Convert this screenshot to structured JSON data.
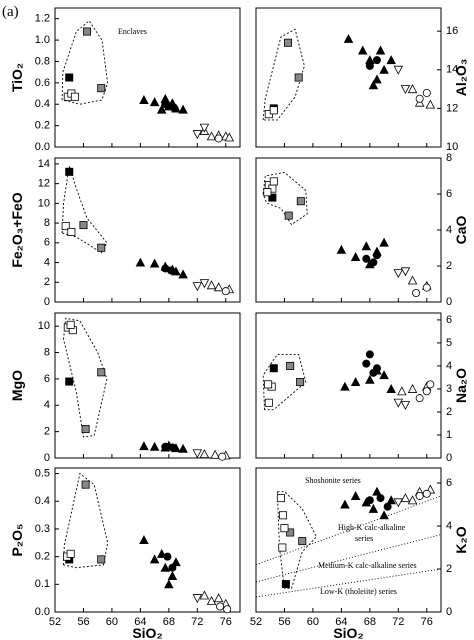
{
  "panel_label": "(a)",
  "chart_data": [
    {
      "type": "scatter",
      "y_label": "TiO₂",
      "y_side": "left",
      "xlim": [
        52,
        78
      ],
      "xticks": [
        52,
        56,
        60,
        64,
        68,
        72,
        76
      ],
      "ylim": [
        0,
        1.3
      ],
      "yticks": [
        {
          "value": 0,
          "label": "0.0"
        },
        0.2,
        0.4,
        0.6,
        0.8,
        {
          "value": 1,
          "label": "1.0"
        },
        1.2
      ],
      "annotations": [
        "Enclaves"
      ],
      "series": [
        {
          "marker": "square",
          "color": "#000000",
          "x": [
            54
          ],
          "values": [
            0.65
          ]
        },
        {
          "marker": "square",
          "color": "#888888",
          "x": [
            56.5,
            58.5
          ],
          "values": [
            1.08,
            0.55
          ]
        },
        {
          "marker": "square",
          "color": "#ffffff",
          "x": [
            53.8,
            54.3,
            54.8
          ],
          "values": [
            0.47,
            0.5,
            0.47
          ]
        },
        {
          "marker": "triangle",
          "color": "#000000",
          "x": [
            64.5,
            66,
            67.5,
            68,
            69,
            70,
            67,
            68.5
          ],
          "values": [
            0.44,
            0.42,
            0.45,
            0.38,
            0.36,
            0.35,
            0.35,
            0.41
          ]
        },
        {
          "marker": "circle",
          "color": "#000000",
          "x": [
            67.5,
            68.2,
            68.8
          ],
          "values": [
            0.4,
            0.38,
            0.36
          ]
        },
        {
          "marker": "triangle",
          "color": "#ffffff",
          "x": [
            73,
            74,
            75,
            76,
            76.5
          ],
          "values": [
            0.15,
            0.1,
            0.11,
            0.1,
            0.09
          ]
        },
        {
          "marker": "inverted",
          "color": "#ffffff",
          "x": [
            72,
            73
          ],
          "values": [
            0.12,
            0.18
          ]
        },
        {
          "marker": "circle",
          "color": "#ffffff",
          "x": [
            75
          ],
          "values": [
            0.08
          ]
        }
      ]
    },
    {
      "type": "scatter",
      "y_label": "Al₂O₃",
      "y_side": "right",
      "xlim": [
        52,
        78
      ],
      "xticks": [
        52,
        56,
        60,
        64,
        68,
        72,
        76
      ],
      "ylim": [
        10,
        17.2
      ],
      "yticks": [
        10,
        12,
        14,
        16
      ],
      "series": [
        {
          "marker": "square",
          "color": "#000000",
          "x": [
            54.5
          ],
          "values": [
            12
          ]
        },
        {
          "marker": "square",
          "color": "#888888",
          "x": [
            56.5,
            58
          ],
          "values": [
            15.4,
            13.6
          ]
        },
        {
          "marker": "square",
          "color": "#ffffff",
          "x": [
            53.8,
            54.5
          ],
          "values": [
            11.7,
            11.9
          ]
        },
        {
          "marker": "triangle",
          "color": "#000000",
          "x": [
            65,
            67,
            68,
            69,
            70,
            68.5,
            71,
            69.5
          ],
          "values": [
            15.6,
            15,
            14.5,
            13.5,
            14,
            13.2,
            14.5,
            15
          ]
        },
        {
          "marker": "circle",
          "color": "#000000",
          "x": [
            68,
            69
          ],
          "values": [
            14.2,
            14.5
          ]
        },
        {
          "marker": "triangle",
          "color": "#ffffff",
          "x": [
            74,
            75,
            76.5
          ],
          "values": [
            13,
            12.3,
            12.2
          ]
        },
        {
          "marker": "inverted",
          "color": "#ffffff",
          "x": [
            72,
            73
          ],
          "values": [
            14,
            13
          ]
        },
        {
          "marker": "circle",
          "color": "#ffffff",
          "x": [
            75,
            76
          ],
          "values": [
            12.5,
            12.8
          ]
        }
      ]
    },
    {
      "type": "scatter",
      "y_label": "Fe₂O₃+FeO",
      "y_side": "left",
      "xlim": [
        52,
        78
      ],
      "xticks": [
        52,
        56,
        60,
        64,
        68,
        72,
        76
      ],
      "ylim": [
        0,
        14.6
      ],
      "yticks": [
        0,
        2,
        4,
        6,
        8,
        10,
        12,
        14
      ],
      "series": [
        {
          "marker": "square",
          "color": "#000000",
          "x": [
            54
          ],
          "values": [
            13.2
          ]
        },
        {
          "marker": "square",
          "color": "#888888",
          "x": [
            56,
            58.5
          ],
          "values": [
            7.8,
            5.5
          ]
        },
        {
          "marker": "square",
          "color": "#ffffff",
          "x": [
            53.5,
            54.3
          ],
          "values": [
            7.7,
            7.1
          ]
        },
        {
          "marker": "triangle",
          "color": "#000000",
          "x": [
            64,
            66,
            67.5,
            68.5,
            70,
            69
          ],
          "values": [
            4,
            3.9,
            3.6,
            3.3,
            2.8,
            3.1
          ]
        },
        {
          "marker": "circle",
          "color": "#000000",
          "x": [
            67.5,
            68.3
          ],
          "values": [
            3.4,
            3.2
          ]
        },
        {
          "marker": "triangle",
          "color": "#ffffff",
          "x": [
            74,
            75,
            76.5
          ],
          "values": [
            1.7,
            1.5,
            1.3
          ]
        },
        {
          "marker": "inverted",
          "color": "#ffffff",
          "x": [
            72,
            73
          ],
          "values": [
            1.6,
            1.9
          ]
        },
        {
          "marker": "circle",
          "color": "#ffffff",
          "x": [
            76
          ],
          "values": [
            1.1
          ]
        }
      ]
    },
    {
      "type": "scatter",
      "y_label": "CaO",
      "y_side": "right",
      "xlim": [
        52,
        78
      ],
      "xticks": [
        52,
        56,
        60,
        64,
        68,
        72,
        76
      ],
      "ylim": [
        0,
        8
      ],
      "yticks": [
        0,
        2,
        4,
        6,
        8
      ],
      "series": [
        {
          "marker": "square",
          "color": "#000000",
          "x": [
            54.3
          ],
          "values": [
            5.8
          ]
        },
        {
          "marker": "square",
          "color": "#888888",
          "x": [
            56.6,
            58.3
          ],
          "values": [
            4.8,
            5.6
          ]
        },
        {
          "marker": "square",
          "color": "#ffffff",
          "x": [
            53.8,
            54.3,
            53.6,
            54.5
          ],
          "values": [
            6.5,
            6.3,
            6.1,
            6.7
          ]
        },
        {
          "marker": "triangle",
          "color": "#000000",
          "x": [
            64,
            66,
            67.5,
            69,
            70,
            68
          ],
          "values": [
            2.9,
            2.5,
            3.1,
            2.8,
            3.3,
            2.1
          ]
        },
        {
          "marker": "circle",
          "color": "#000000",
          "x": [
            67.5,
            68.5,
            69
          ],
          "values": [
            2.4,
            2.2,
            2.6
          ]
        },
        {
          "marker": "triangle",
          "color": "#ffffff",
          "x": [
            74,
            76
          ],
          "values": [
            1.2,
            0.9
          ]
        },
        {
          "marker": "inverted",
          "color": "#ffffff",
          "x": [
            72,
            73
          ],
          "values": [
            1.6,
            1.7
          ]
        },
        {
          "marker": "circle",
          "color": "#ffffff",
          "x": [
            74.5,
            76
          ],
          "values": [
            0.5,
            0.8
          ]
        }
      ]
    },
    {
      "type": "scatter",
      "y_label": "MgO",
      "y_side": "left",
      "xlim": [
        52,
        78
      ],
      "xticks": [
        52,
        56,
        60,
        64,
        68,
        72,
        76
      ],
      "ylim": [
        0,
        11
      ],
      "yticks": [
        0,
        2,
        4,
        6,
        8,
        10
      ],
      "series": [
        {
          "marker": "square",
          "color": "#000000",
          "x": [
            54
          ],
          "values": [
            5.8
          ]
        },
        {
          "marker": "square",
          "color": "#888888",
          "x": [
            58.5,
            56.3
          ],
          "values": [
            6.5,
            2.2
          ]
        },
        {
          "marker": "square",
          "color": "#ffffff",
          "x": [
            53.8,
            54.5,
            54.2
          ],
          "values": [
            9.9,
            9.7,
            10.1
          ]
        },
        {
          "marker": "triangle",
          "color": "#000000",
          "x": [
            64.5,
            66,
            67.5,
            69,
            70,
            68
          ],
          "values": [
            0.9,
            0.85,
            0.8,
            0.75,
            0.7,
            0.95
          ]
        },
        {
          "marker": "circle",
          "color": "#000000",
          "x": [
            67.5,
            68.5
          ],
          "values": [
            0.85,
            0.8
          ]
        },
        {
          "marker": "triangle",
          "color": "#ffffff",
          "x": [
            73,
            74.5,
            76
          ],
          "values": [
            0.3,
            0.25,
            0.2
          ]
        },
        {
          "marker": "inverted",
          "color": "#ffffff",
          "x": [
            72
          ],
          "values": [
            0.35
          ]
        },
        {
          "marker": "circle",
          "color": "#ffffff",
          "x": [
            75.5
          ],
          "values": [
            0.1
          ]
        }
      ]
    },
    {
      "type": "scatter",
      "y_label": "Na₂O",
      "y_side": "right",
      "xlim": [
        52,
        78
      ],
      "xticks": [
        52,
        56,
        60,
        64,
        68,
        72,
        76
      ],
      "ylim": [
        0,
        6.3
      ],
      "yticks": [
        0,
        1,
        2,
        3,
        4,
        5,
        6
      ],
      "series": [
        {
          "marker": "square",
          "color": "#000000",
          "x": [
            54.5
          ],
          "values": [
            3.9
          ]
        },
        {
          "marker": "square",
          "color": "#888888",
          "x": [
            58.2,
            56.8
          ],
          "values": [
            3.3,
            4
          ]
        },
        {
          "marker": "square",
          "color": "#ffffff",
          "x": [
            53.8,
            54.2,
            53.7
          ],
          "values": [
            2.4,
            3.1,
            3.2
          ]
        },
        {
          "marker": "triangle",
          "color": "#000000",
          "x": [
            64.5,
            66,
            68,
            70,
            69,
            71
          ],
          "values": [
            3.1,
            3.3,
            3.4,
            3.6,
            3.8,
            3
          ]
        },
        {
          "marker": "circle",
          "color": "#000000",
          "x": [
            67.5,
            68.5,
            68,
            69
          ],
          "values": [
            4.1,
            3.7,
            4.5,
            3.9
          ]
        },
        {
          "marker": "triangle",
          "color": "#ffffff",
          "x": [
            72.5,
            74,
            76
          ],
          "values": [
            2.9,
            3,
            3.1
          ]
        },
        {
          "marker": "inverted",
          "color": "#ffffff",
          "x": [
            72,
            73
          ],
          "values": [
            2.4,
            2.3
          ]
        },
        {
          "marker": "circle",
          "color": "#ffffff",
          "x": [
            75,
            76,
            76.5
          ],
          "values": [
            2.6,
            2.9,
            3.2
          ]
        }
      ]
    },
    {
      "type": "scatter",
      "y_label": "P₂O₅",
      "x_label": "SiO₂",
      "y_side": "left",
      "xlim": [
        52,
        78
      ],
      "xticks": [
        52,
        56,
        60,
        64,
        68,
        72,
        76
      ],
      "ylim": [
        0,
        0.52
      ],
      "yticks": [
        {
          "value": 0,
          "label": "0.0"
        },
        0.1,
        0.2,
        0.3,
        0.4,
        0.5
      ],
      "series": [
        {
          "marker": "square",
          "color": "#000000",
          "x": [
            54
          ],
          "values": [
            0.19
          ]
        },
        {
          "marker": "square",
          "color": "#888888",
          "x": [
            56.3,
            58.5
          ],
          "values": [
            0.46,
            0.19
          ]
        },
        {
          "marker": "square",
          "color": "#ffffff",
          "x": [
            53.7,
            54.2
          ],
          "values": [
            0.2,
            0.21
          ]
        },
        {
          "marker": "triangle",
          "color": "#000000",
          "x": [
            64.5,
            66,
            67.5,
            68.5,
            69,
            67,
            68
          ],
          "values": [
            0.26,
            0.19,
            0.16,
            0.13,
            0.18,
            0.21,
            0.1
          ]
        },
        {
          "marker": "circle",
          "color": "#000000",
          "x": [
            67.8,
            68.5
          ],
          "values": [
            0.2,
            0.16
          ]
        },
        {
          "marker": "triangle",
          "color": "#ffffff",
          "x": [
            73,
            74,
            75,
            76
          ],
          "values": [
            0.06,
            0.04,
            0.05,
            0.03
          ]
        },
        {
          "marker": "inverted",
          "color": "#ffffff",
          "x": [
            72
          ],
          "values": [
            0.05
          ]
        },
        {
          "marker": "circle",
          "color": "#ffffff",
          "x": [
            75.2,
            76.2
          ],
          "values": [
            0.02,
            0.01
          ]
        }
      ]
    },
    {
      "type": "scatter",
      "y_label": "K₂O",
      "x_label": "SiO₂",
      "y_side": "right",
      "xlim": [
        52,
        78
      ],
      "xticks": [
        52,
        56,
        60,
        64,
        68,
        72,
        76
      ],
      "ylim": [
        0,
        6.7
      ],
      "yticks": [
        0,
        2,
        4,
        6
      ],
      "annotations": [
        "Shoshonite series",
        "High-K calc-alkaline",
        "series",
        "Medium-K calc-alkaline series",
        "Low-K (tholeiite) series"
      ],
      "lines": [
        {
          "x": [
            52,
            78
          ],
          "values": [
            2.2,
            5.4
          ]
        },
        {
          "x": [
            52,
            78
          ],
          "values": [
            1.4,
            3.6
          ]
        },
        {
          "x": [
            52,
            78
          ],
          "values": [
            0.7,
            2
          ]
        }
      ],
      "series": [
        {
          "marker": "square",
          "color": "#000000",
          "x": [
            56.2
          ],
          "values": [
            1.3
          ]
        },
        {
          "marker": "square",
          "color": "#888888",
          "x": [
            56.8,
            58.5
          ],
          "values": [
            3.7,
            3.3
          ]
        },
        {
          "marker": "square",
          "color": "#ffffff",
          "x": [
            55.5,
            55.8,
            56,
            55.7
          ],
          "values": [
            5.3,
            4.5,
            3.9,
            3
          ]
        },
        {
          "marker": "triangle",
          "color": "#000000",
          "x": [
            64.5,
            66,
            67.5,
            69,
            70,
            71,
            68.5
          ],
          "values": [
            5,
            5.4,
            5.1,
            5.6,
            4.5,
            5.2,
            4.8
          ]
        },
        {
          "marker": "circle",
          "color": "#000000",
          "x": [
            68,
            69.5,
            70.5
          ],
          "values": [
            5.2,
            5.3,
            4.9
          ]
        },
        {
          "marker": "triangle",
          "color": "#ffffff",
          "x": [
            73,
            75,
            76.5,
            74
          ],
          "values": [
            5.3,
            5.6,
            5.7,
            5.2
          ]
        },
        {
          "marker": "inverted",
          "color": "#ffffff",
          "x": [
            72
          ],
          "values": [
            5.1
          ]
        },
        {
          "marker": "circle",
          "color": "#ffffff",
          "x": [
            75,
            76
          ],
          "values": [
            5.4,
            5.5
          ]
        }
      ]
    }
  ]
}
